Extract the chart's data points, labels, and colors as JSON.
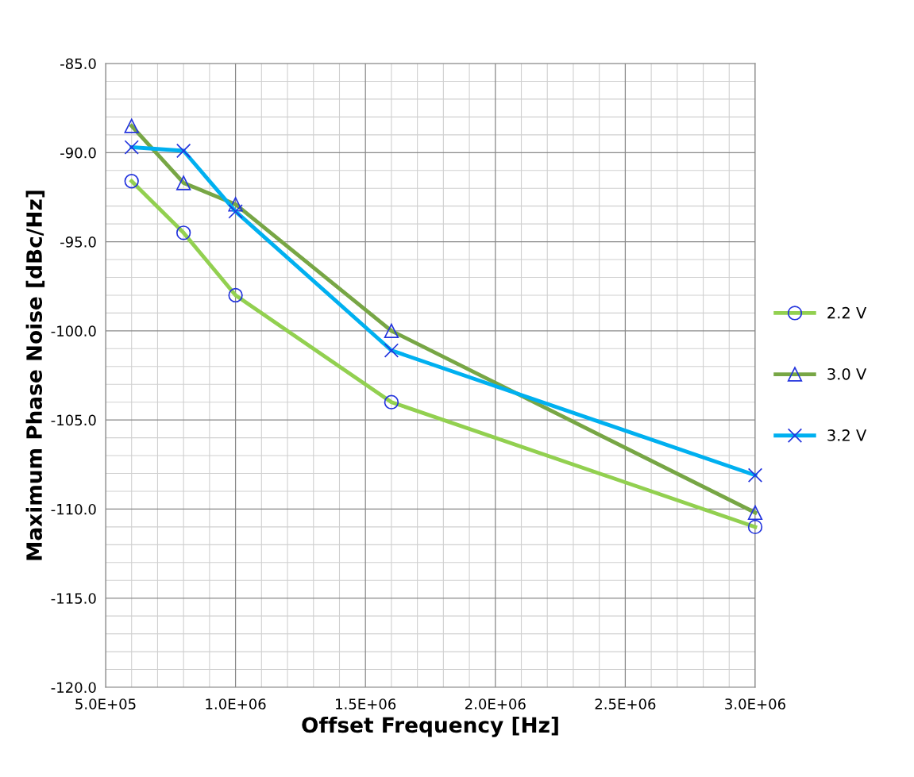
{
  "chart_data": {
    "type": "line",
    "xlabel": "Offset Frequency [Hz]",
    "ylabel": "Maximum Phase Noise [dBc/Hz]",
    "x": [
      600000,
      800000,
      1000000,
      1600000,
      3000000
    ],
    "series": [
      {
        "name": "2.2 V",
        "color": "#92d050",
        "marker": "circle",
        "values": [
          -91.6,
          -94.5,
          -98.0,
          -104.0,
          -111.0
        ]
      },
      {
        "name": "3.0 V",
        "color": "#77a645",
        "marker": "triangle",
        "values": [
          -88.5,
          -91.7,
          -92.9,
          -100.0,
          -110.2
        ]
      },
      {
        "name": "3.2 V",
        "color": "#00b0f0",
        "marker": "cross",
        "values": [
          -89.7,
          -89.9,
          -93.3,
          -101.1,
          -108.1
        ]
      }
    ],
    "xlim": [
      500000,
      3000000
    ],
    "xticks": [
      {
        "value": 500000,
        "label": "5.0E+05"
      },
      {
        "value": 1000000,
        "label": "1.0E+06"
      },
      {
        "value": 1500000,
        "label": "1.5E+06"
      },
      {
        "value": 2000000,
        "label": "2.0E+06"
      },
      {
        "value": 2500000,
        "label": "2.5E+06"
      },
      {
        "value": 3000000,
        "label": "3.0E+06"
      }
    ],
    "ylim": [
      -120,
      -85
    ],
    "yticks": [
      {
        "value": -120,
        "label": "-120.0"
      },
      {
        "value": -115,
        "label": "-115.0"
      },
      {
        "value": -110,
        "label": "-110.0"
      },
      {
        "value": -105,
        "label": "-105.0"
      },
      {
        "value": -100,
        "label": "-100.0"
      },
      {
        "value": -95,
        "label": "-95.0"
      },
      {
        "value": -90,
        "label": "-90.0"
      },
      {
        "value": -85,
        "label": "-85.0"
      }
    ],
    "grid": true,
    "legend": "right",
    "line_style": "solid"
  }
}
